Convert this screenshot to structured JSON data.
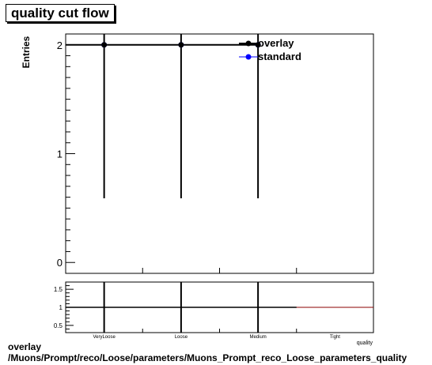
{
  "title": "quality cut flow",
  "footer": {
    "line1": "overlay",
    "line2": "/Muons/Prompt/reco/Loose/parameters/Muons_Prompt_reco_Loose_parameters_quality"
  },
  "chart_data": [
    {
      "type": "line",
      "ylabel": "Entries",
      "ylim": [
        -0.1,
        2.1
      ],
      "yticks": [
        "0",
        "1",
        "2"
      ],
      "categories": [
        "VeryLoose",
        "Loose",
        "Medium",
        "Tight"
      ],
      "series": [
        {
          "name": "overlay",
          "color": "#000000",
          "values": [
            2,
            2,
            2,
            null
          ],
          "err": [
            1.41,
            1.41,
            1.41,
            null
          ]
        },
        {
          "name": "standard",
          "color": "#0000ff",
          "values": [
            2,
            2,
            2,
            null
          ],
          "err": [
            1.41,
            1.41,
            1.41,
            null
          ]
        }
      ],
      "legend": "top-right"
    },
    {
      "type": "line",
      "ylim": [
        0.3,
        1.7
      ],
      "yticks": [
        "0.5",
        "1",
        "1.5"
      ],
      "categories": [
        "VeryLoose",
        "Loose",
        "Medium",
        "Tight"
      ],
      "xlabel": "quality",
      "series": [
        {
          "color": "#8b0000",
          "values": [
            1,
            1,
            1,
            1
          ],
          "err": [
            1.41,
            1.41,
            1.41,
            null
          ]
        }
      ]
    }
  ]
}
